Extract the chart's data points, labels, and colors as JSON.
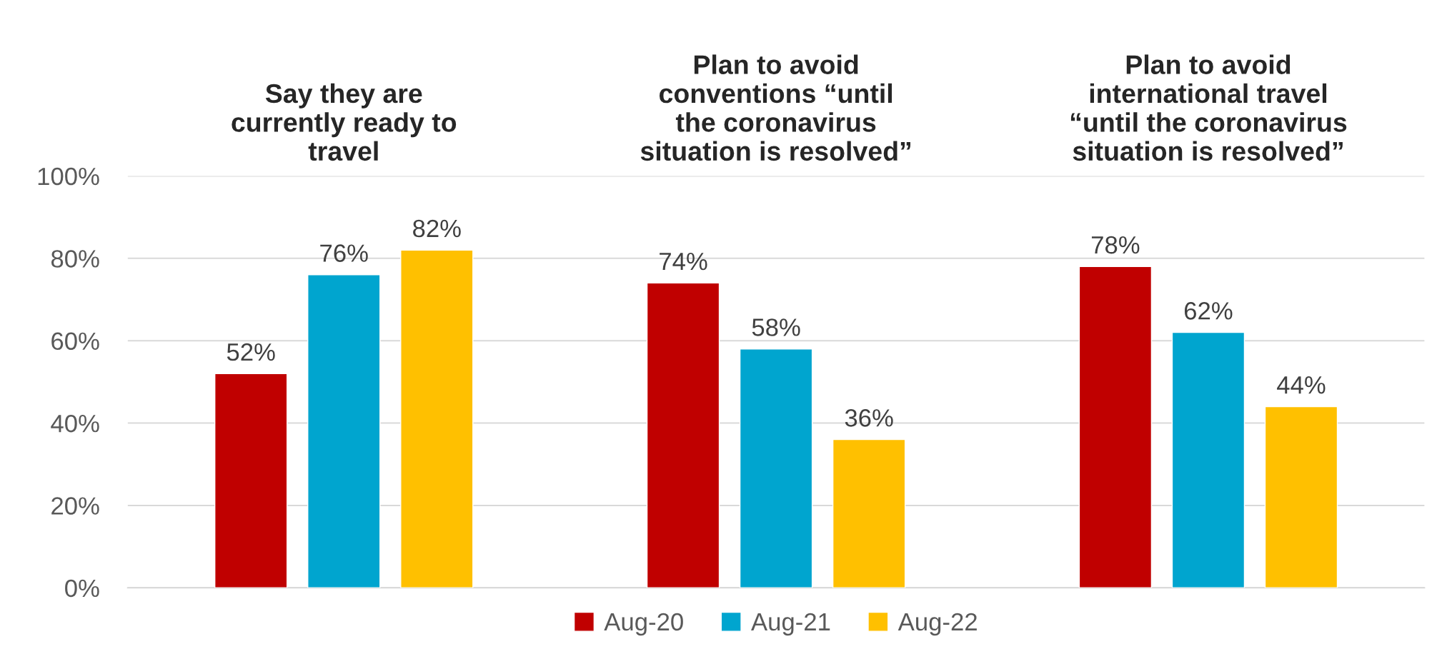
{
  "chart_data": {
    "type": "bar",
    "categories": [
      "Say they are\ncurrently ready to\ntravel",
      "Plan to avoid\nconventions “until\nthe coronavirus\nsituation is resolved”",
      "Plan to avoid\ninternational travel\n“until the coronavirus\nsituation is resolved”"
    ],
    "series": [
      {
        "name": "Aug-20",
        "color": "#c00000",
        "values": [
          52,
          74,
          78
        ]
      },
      {
        "name": "Aug-21",
        "color": "#00a5cf",
        "values": [
          76,
          58,
          62
        ]
      },
      {
        "name": "Aug-22",
        "color": "#ffc000",
        "values": [
          82,
          36,
          44
        ]
      }
    ],
    "ylim": [
      0,
      100
    ],
    "yticks": [
      {
        "value": 0,
        "label": "0%"
      },
      {
        "value": 20,
        "label": "20%"
      },
      {
        "value": 40,
        "label": "40%"
      },
      {
        "value": 60,
        "label": "60%"
      },
      {
        "value": 80,
        "label": "80%"
      },
      {
        "value": 100,
        "label": "100%"
      }
    ],
    "value_labels": [
      [
        "52%",
        "74%",
        "78%"
      ],
      [
        "76%",
        "58%",
        "62%"
      ],
      [
        "82%",
        "36%",
        "44%"
      ]
    ],
    "grid": "y",
    "legend": "bottom"
  }
}
